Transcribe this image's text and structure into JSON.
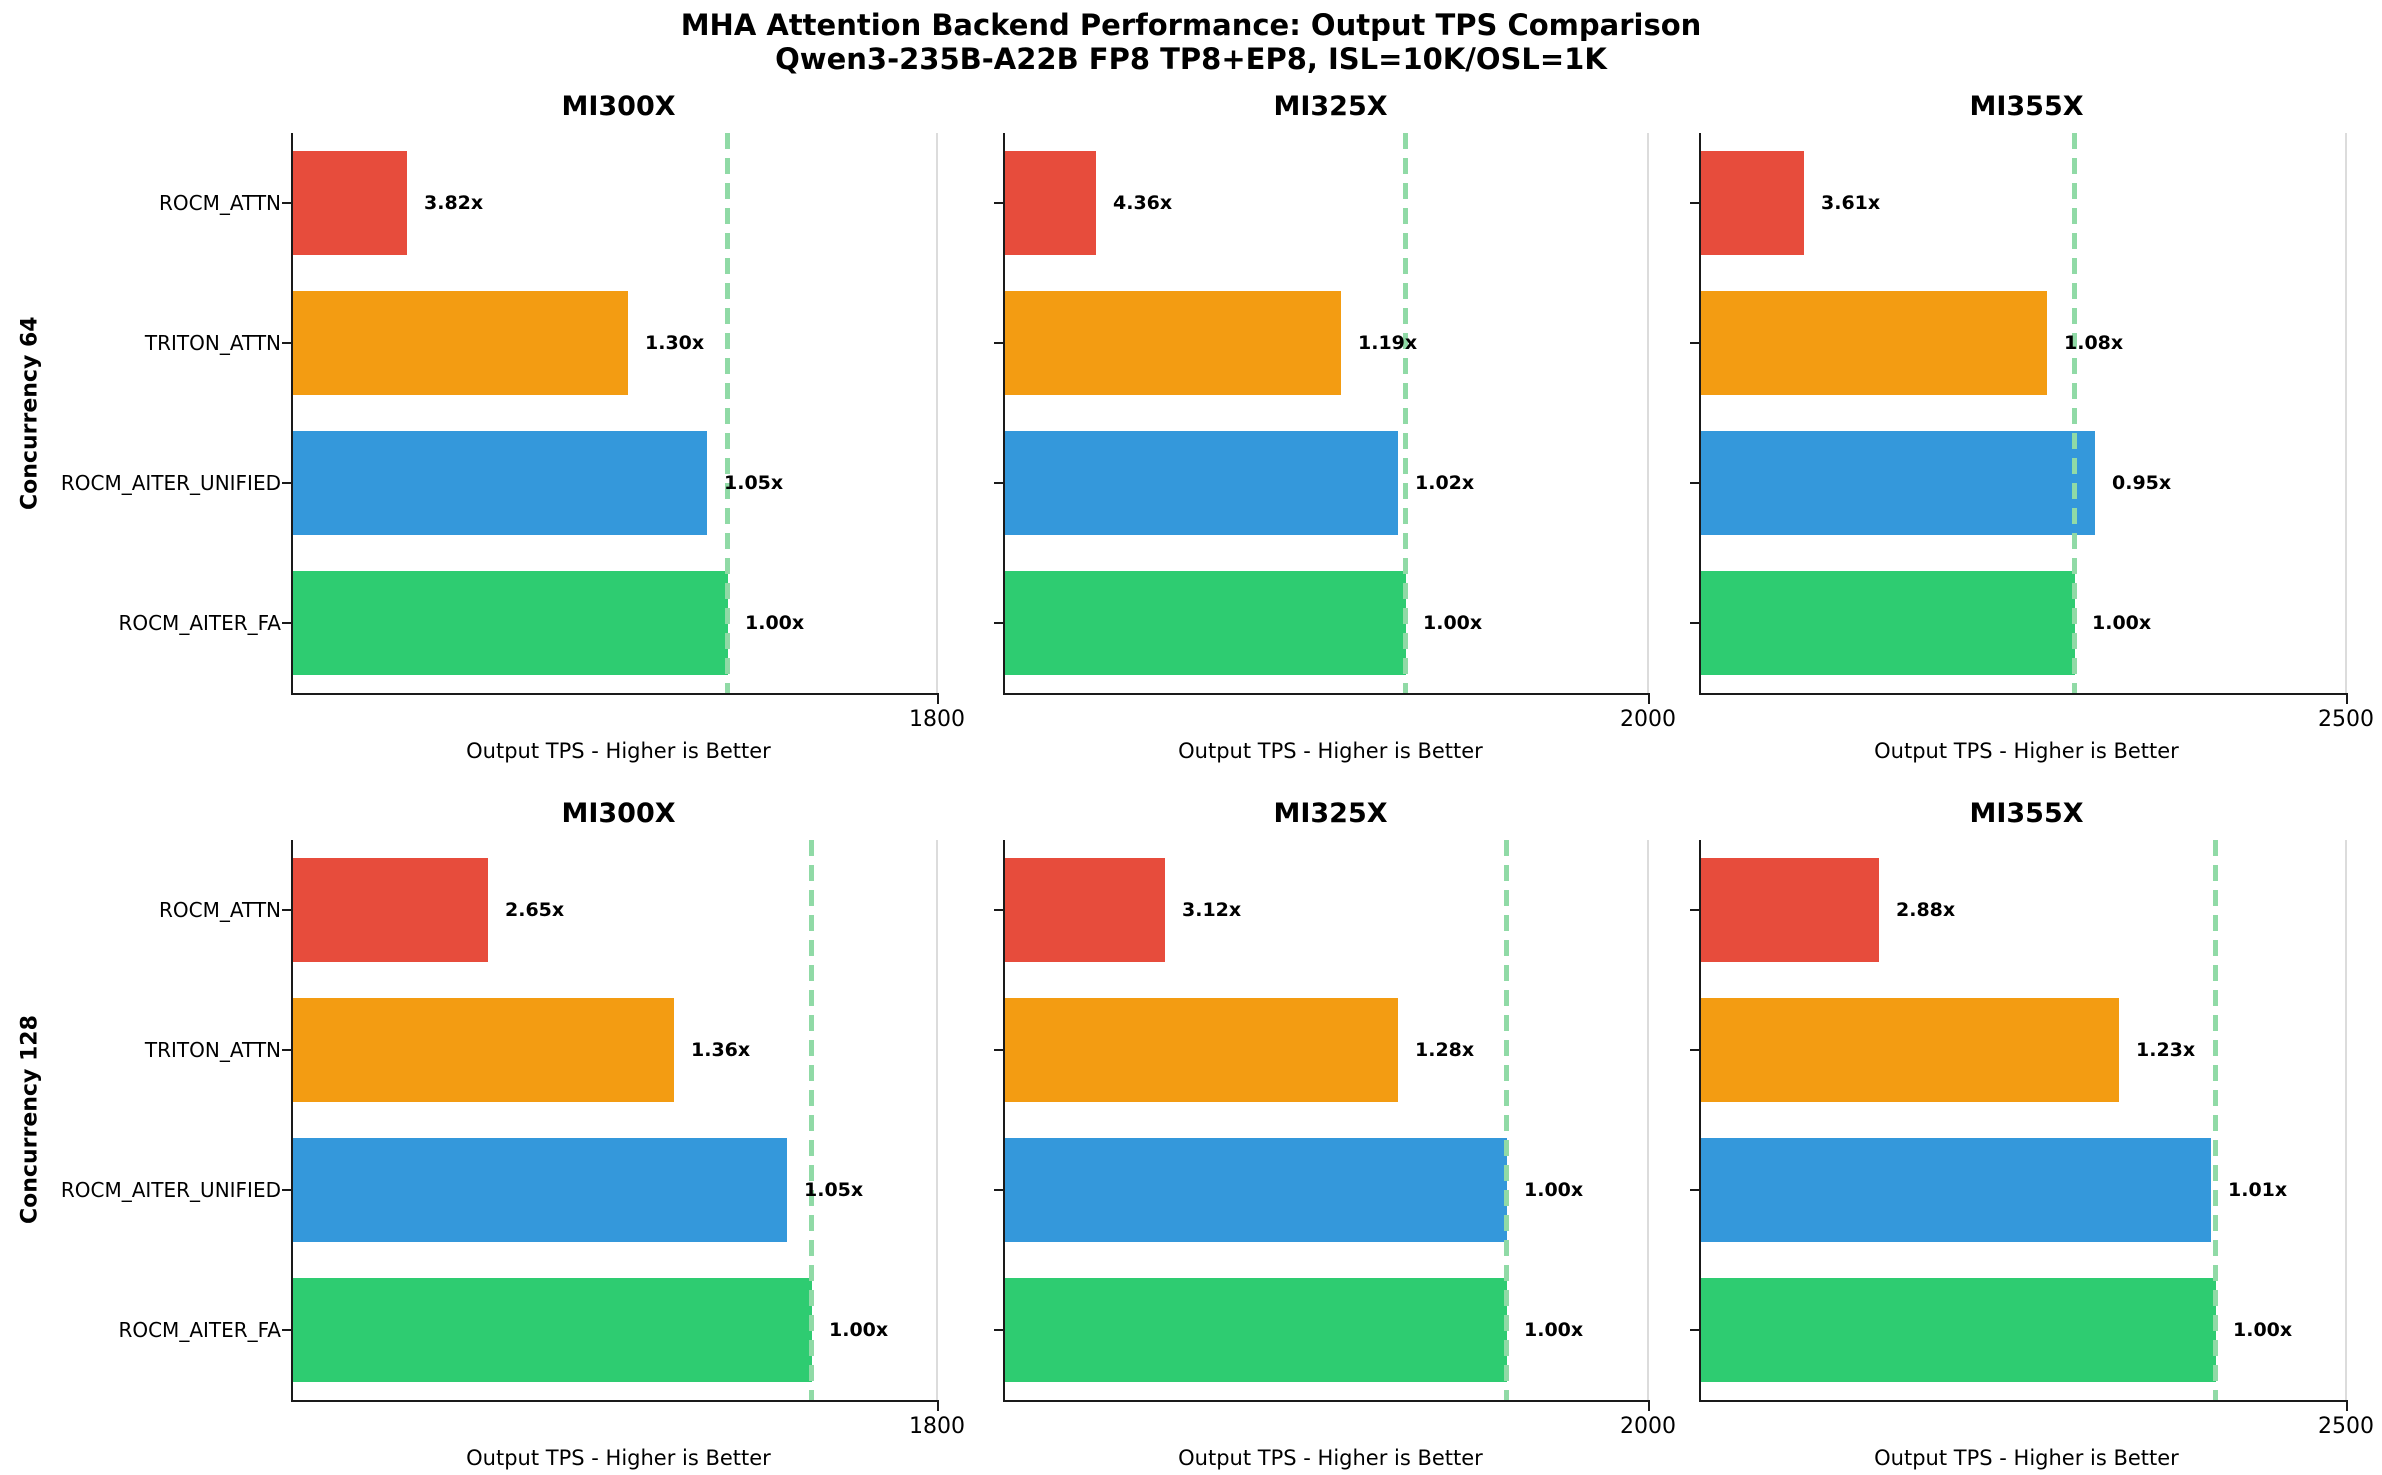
{
  "header": {
    "title_line1": "MHA Attention Backend Performance: Output TPS Comparison",
    "title_line2": "Qwen3-235B-A22B FP8 TP8+EP8, ISL=10K/OSL=1K"
  },
  "chart_data": {
    "type": "bar",
    "orientation": "horizontal",
    "xlabel": "Output TPS - Higher is Better",
    "legend": "none",
    "grid": "single light vertical gridline at the x tick of each panel",
    "baseline_backend": "ROCM_AITER_FA",
    "baseline_note": "pale green dashed vertical line marks the ROCM_AITER_FA (1.00x) bar end",
    "backends": [
      "ROCM_ATTN",
      "TRITON_ATTN",
      "ROCM_AITER_UNIFIED",
      "ROCM_AITER_FA"
    ],
    "colors": {
      "ROCM_ATTN": "#e74c3c",
      "TRITON_ATTN": "#f39c12",
      "ROCM_AITER_UNIFIED": "#3498db",
      "ROCM_AITER_FA": "#2ecc71",
      "baseline_dash": "#90daa6",
      "gridline": "#dcdcdc",
      "axis": "#1a1a1a"
    },
    "rows": [
      {
        "row_label": "Concurrency 64",
        "panels": [
          {
            "title": "MI300X",
            "xtick": 1800,
            "xlim": [
              0,
              1825
            ],
            "bars": [
              {
                "backend": "ROCM_ATTN",
                "output_tps": 320,
                "speedup_label": "3.82x"
              },
              {
                "backend": "TRITON_ATTN",
                "output_tps": 935,
                "speedup_label": "1.30x"
              },
              {
                "backend": "ROCM_AITER_UNIFIED",
                "output_tps": 1155,
                "speedup_label": "1.05x"
              },
              {
                "backend": "ROCM_AITER_FA",
                "output_tps": 1215,
                "speedup_label": "1.00x"
              }
            ]
          },
          {
            "title": "MI325X",
            "xtick": 2000,
            "xlim": [
              0,
              2030
            ],
            "bars": [
              {
                "backend": "ROCM_ATTN",
                "output_tps": 285,
                "speedup_label": "4.36x"
              },
              {
                "backend": "TRITON_ATTN",
                "output_tps": 1045,
                "speedup_label": "1.19x"
              },
              {
                "backend": "ROCM_AITER_UNIFIED",
                "output_tps": 1220,
                "speedup_label": "1.02x"
              },
              {
                "backend": "ROCM_AITER_FA",
                "output_tps": 1245,
                "speedup_label": "1.00x"
              }
            ]
          },
          {
            "title": "MI355X",
            "xtick": 2500,
            "xlim": [
              0,
              2530
            ],
            "bars": [
              {
                "backend": "ROCM_ATTN",
                "output_tps": 400,
                "speedup_label": "3.61x"
              },
              {
                "backend": "TRITON_ATTN",
                "output_tps": 1340,
                "speedup_label": "1.08x"
              },
              {
                "backend": "ROCM_AITER_UNIFIED",
                "output_tps": 1525,
                "speedup_label": "0.95x"
              },
              {
                "backend": "ROCM_AITER_FA",
                "output_tps": 1450,
                "speedup_label": "1.00x"
              }
            ]
          }
        ]
      },
      {
        "row_label": "Concurrency 128",
        "panels": [
          {
            "title": "MI300X",
            "xtick": 1800,
            "xlim": [
              0,
              1825
            ],
            "bars": [
              {
                "backend": "ROCM_ATTN",
                "output_tps": 545,
                "speedup_label": "2.65x"
              },
              {
                "backend": "TRITON_ATTN",
                "output_tps": 1065,
                "speedup_label": "1.36x"
              },
              {
                "backend": "ROCM_AITER_UNIFIED",
                "output_tps": 1380,
                "speedup_label": "1.05x"
              },
              {
                "backend": "ROCM_AITER_FA",
                "output_tps": 1450,
                "speedup_label": "1.00x"
              }
            ]
          },
          {
            "title": "MI325X",
            "xtick": 2000,
            "xlim": [
              0,
              2030
            ],
            "bars": [
              {
                "backend": "ROCM_ATTN",
                "output_tps": 500,
                "speedup_label": "3.12x"
              },
              {
                "backend": "TRITON_ATTN",
                "output_tps": 1220,
                "speedup_label": "1.28x"
              },
              {
                "backend": "ROCM_AITER_UNIFIED",
                "output_tps": 1560,
                "speedup_label": "1.00x"
              },
              {
                "backend": "ROCM_AITER_FA",
                "output_tps": 1560,
                "speedup_label": "1.00x"
              }
            ]
          },
          {
            "title": "MI355X",
            "xtick": 2500,
            "xlim": [
              0,
              2530
            ],
            "bars": [
              {
                "backend": "ROCM_ATTN",
                "output_tps": 690,
                "speedup_label": "2.88x"
              },
              {
                "backend": "TRITON_ATTN",
                "output_tps": 1620,
                "speedup_label": "1.23x"
              },
              {
                "backend": "ROCM_AITER_UNIFIED",
                "output_tps": 1975,
                "speedup_label": "1.01x"
              },
              {
                "backend": "ROCM_AITER_FA",
                "output_tps": 1995,
                "speedup_label": "1.00x"
              }
            ]
          }
        ]
      }
    ]
  }
}
